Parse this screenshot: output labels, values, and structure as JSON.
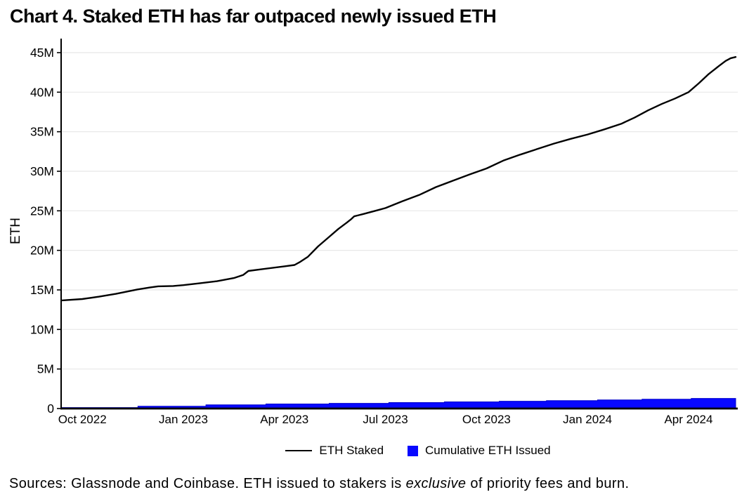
{
  "title": "Chart 4. Staked ETH has far outpaced newly issued ETH",
  "sources": {
    "prefix": "Sources: Glassnode and Coinbase. ETH issued to stakers is ",
    "italic": "exclusive",
    "suffix": " of priority fees and burn."
  },
  "legend": [
    {
      "label": "ETH Staked",
      "swatch": "line",
      "color": "#000000"
    },
    {
      "label": "Cumulative ETH Issued",
      "swatch": "square",
      "color": "#0808ff"
    }
  ],
  "colors": {
    "staked_line": "#000000",
    "issued_fill": "#0808ff",
    "issued_edge": "#0000cc",
    "gridline": "#e8e8e8",
    "axis": "#000000",
    "background": "#ffffff"
  },
  "chart_data": {
    "type": "line",
    "title": "Chart 4. Staked ETH has far outpaced newly issued ETH",
    "xlabel": "",
    "ylabel": "ETH",
    "y_unit": "millions of ETH",
    "x_unit": "months since Oct 2022",
    "x_domain": [
      -0.6,
      19.4
    ],
    "ylim_millions": [
      0,
      45
    ],
    "grid": "horizontal",
    "legend_position": "bottom",
    "xticks": [
      {
        "pos": 0,
        "label": "Oct 2022"
      },
      {
        "pos": 3,
        "label": "Jan 2023"
      },
      {
        "pos": 6,
        "label": "Apr 2023"
      },
      {
        "pos": 9,
        "label": "Jul 2023"
      },
      {
        "pos": 12,
        "label": "Oct 2023"
      },
      {
        "pos": 15,
        "label": "Jan 2024"
      },
      {
        "pos": 18,
        "label": "Apr 2024"
      }
    ],
    "yticks": [
      {
        "v": 0,
        "label": "0"
      },
      {
        "v": 5,
        "label": "5M"
      },
      {
        "v": 10,
        "label": "10M"
      },
      {
        "v": 15,
        "label": "15M"
      },
      {
        "v": 20,
        "label": "20M"
      },
      {
        "v": 25,
        "label": "25M"
      },
      {
        "v": 30,
        "label": "30M"
      },
      {
        "v": 35,
        "label": "35M"
      },
      {
        "v": 40,
        "label": "40M"
      },
      {
        "v": 45,
        "label": "45M"
      }
    ],
    "series": [
      {
        "name": "ETH Staked",
        "style": "line",
        "color": "#000000",
        "points_month_valueM": [
          [
            -0.6,
            13.68
          ],
          [
            0,
            13.85
          ],
          [
            0.5,
            14.15
          ],
          [
            1.0,
            14.5
          ],
          [
            1.63,
            15.05
          ],
          [
            2.0,
            15.3
          ],
          [
            2.25,
            15.45
          ],
          [
            2.7,
            15.5
          ],
          [
            3.0,
            15.6
          ],
          [
            3.5,
            15.85
          ],
          [
            4.0,
            16.1
          ],
          [
            4.5,
            16.5
          ],
          [
            4.78,
            16.9
          ],
          [
            4.93,
            17.4
          ],
          [
            5.3,
            17.6
          ],
          [
            6.0,
            17.98
          ],
          [
            6.3,
            18.15
          ],
          [
            6.45,
            18.5
          ],
          [
            6.7,
            19.2
          ],
          [
            7.0,
            20.5
          ],
          [
            7.3,
            21.6
          ],
          [
            7.6,
            22.7
          ],
          [
            7.85,
            23.5
          ],
          [
            7.97,
            23.9
          ],
          [
            8.07,
            24.3
          ],
          [
            8.35,
            24.6
          ],
          [
            8.7,
            25.0
          ],
          [
            9.0,
            25.35
          ],
          [
            9.5,
            26.2
          ],
          [
            10.0,
            27.0
          ],
          [
            10.5,
            28.0
          ],
          [
            11.0,
            28.8
          ],
          [
            11.5,
            29.6
          ],
          [
            12.0,
            30.35
          ],
          [
            12.5,
            31.35
          ],
          [
            13.0,
            32.1
          ],
          [
            13.5,
            32.8
          ],
          [
            14.0,
            33.5
          ],
          [
            14.5,
            34.1
          ],
          [
            15.0,
            34.65
          ],
          [
            15.5,
            35.3
          ],
          [
            16.0,
            36.0
          ],
          [
            16.4,
            36.8
          ],
          [
            16.8,
            37.7
          ],
          [
            17.2,
            38.5
          ],
          [
            17.6,
            39.2
          ],
          [
            18.0,
            40.0
          ],
          [
            18.3,
            41.1
          ],
          [
            18.6,
            42.3
          ],
          [
            18.9,
            43.3
          ],
          [
            19.1,
            43.95
          ],
          [
            19.25,
            44.3
          ],
          [
            19.4,
            44.45
          ]
        ]
      },
      {
        "name": "Cumulative ETH Issued",
        "style": "step-area",
        "color": "#0808ff",
        "steps_startMonth_valueM": [
          [
            -0.6,
            0.12
          ],
          [
            1.65,
            0.28
          ],
          [
            3.67,
            0.46
          ],
          [
            5.45,
            0.58
          ],
          [
            7.33,
            0.66
          ],
          [
            9.1,
            0.75
          ],
          [
            10.75,
            0.84
          ],
          [
            12.38,
            0.92
          ],
          [
            13.78,
            1.0
          ],
          [
            15.3,
            1.08
          ],
          [
            16.62,
            1.17
          ],
          [
            18.08,
            1.28
          ]
        ],
        "end_month": 19.4
      }
    ]
  }
}
